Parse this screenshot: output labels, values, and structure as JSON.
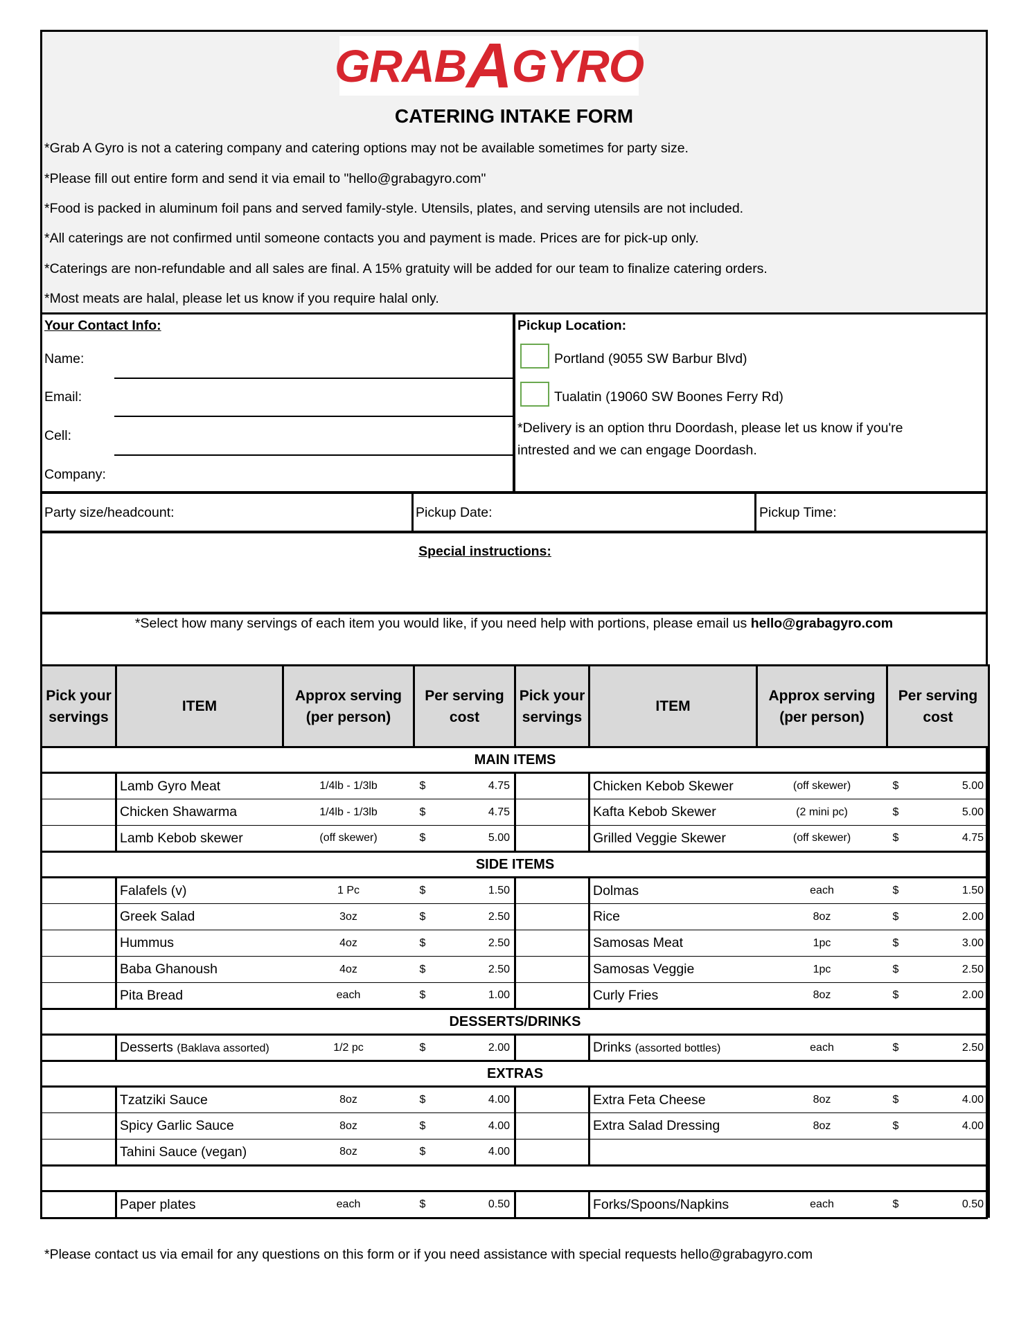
{
  "brand": {
    "logo_text_left": "GRAB",
    "logo_text_mid": "A",
    "logo_text_right": "GYRO",
    "color": "#d7262e"
  },
  "title": "CATERING INTAKE FORM",
  "notes": [
    "*Grab A Gyro is not a catering company and catering options may not be available sometimes for party size.",
    "*Please fill out entire form and send it via email to \"hello@grabagyro.com\"",
    "*Food is packed in aluminum foil pans and served family-style. Utensils, plates, and serving utensils are not included.",
    "*All caterings are not confirmed until someone contacts you and payment is made. Prices are for pick-up only.",
    "*Caterings are non-refundable and all sales are final. A 15% gratuity will be added for our team to finalize catering orders.",
    "*Most meats are halal, please let us know if you require halal only."
  ],
  "contact": {
    "heading": "Your Contact Info:",
    "name": "Name:",
    "email": "Email:",
    "cell": "Cell:",
    "company": "Company:"
  },
  "pickup": {
    "heading": "Pickup Location:",
    "options": [
      "Portland (9055 SW Barbur Blvd)",
      "Tualatin (19060 SW Boones Ferry Rd)"
    ],
    "delivery_note_1": "*Delivery is an option thru Doordash, please let us know if you're",
    "delivery_note_2": "intrested and we can engage Doordash."
  },
  "party": {
    "headcount": "Party size/headcount:",
    "date": "Pickup Date:",
    "time": "Pickup Time:"
  },
  "special": "Special instructions:",
  "select_note": "*Select how many servings of each item you would like, if you need help with portions, please email us ",
  "select_email": "hello@grabagyro.com",
  "headers": {
    "pick": [
      "Pick your",
      "servings"
    ],
    "item": "ITEM",
    "approx": [
      "Approx serving",
      "(per person)"
    ],
    "cost": [
      "Per serving",
      "cost"
    ]
  },
  "sections": [
    {
      "title": "MAIN ITEMS",
      "rows": [
        [
          {
            "item": "Lamb Gyro Meat",
            "approx": "1/4lb - 1/3lb",
            "cost": "4.75"
          },
          {
            "item": "Chicken Kebob Skewer",
            "approx": "(off skewer)",
            "cost": "5.00"
          }
        ],
        [
          {
            "item": "Chicken Shawarma",
            "approx": "1/4lb - 1/3lb",
            "cost": "4.75"
          },
          {
            "item": "Kafta Kebob Skewer",
            "approx": "(2 mini pc)",
            "cost": "5.00"
          }
        ],
        [
          {
            "item": "Lamb Kebob skewer",
            "approx": "(off skewer)",
            "cost": "5.00"
          },
          {
            "item": "Grilled Veggie Skewer",
            "approx": "(off skewer)",
            "cost": "4.75"
          }
        ]
      ]
    },
    {
      "title": "SIDE ITEMS",
      "rows": [
        [
          {
            "item": "Falafels (v)",
            "approx": "1 Pc",
            "cost": "1.50"
          },
          {
            "item": "Dolmas",
            "approx": "each",
            "cost": "1.50"
          }
        ],
        [
          {
            "item": "Greek Salad",
            "approx": "3oz",
            "cost": "2.50"
          },
          {
            "item": "Rice",
            "approx": "8oz",
            "cost": "2.00"
          }
        ],
        [
          {
            "item": "Hummus",
            "approx": "4oz",
            "cost": "2.50"
          },
          {
            "item": "Samosas Meat",
            "approx": "1pc",
            "cost": "3.00"
          }
        ],
        [
          {
            "item": "Baba Ghanoush",
            "approx": "4oz",
            "cost": "2.50"
          },
          {
            "item": "Samosas Veggie",
            "approx": "1pc",
            "cost": "2.50"
          }
        ],
        [
          {
            "item": "Pita Bread",
            "approx": "each",
            "cost": "1.00"
          },
          {
            "item": "Curly Fries",
            "approx": "8oz",
            "cost": "2.00"
          }
        ]
      ]
    },
    {
      "title": "DESSERTS/DRINKS",
      "rows": [
        [
          {
            "item": "Desserts",
            "note": "(Baklava assorted)",
            "approx": "1/2 pc",
            "cost": "2.00"
          },
          {
            "item": "Drinks",
            "note": "(assorted bottles)",
            "approx": "each",
            "cost": "2.50"
          }
        ]
      ]
    },
    {
      "title": "EXTRAS",
      "rows": [
        [
          {
            "item": "Tzatziki Sauce",
            "approx": "8oz",
            "cost": "4.00"
          },
          {
            "item": "Extra Feta Cheese",
            "approx": "8oz",
            "cost": "4.00"
          }
        ],
        [
          {
            "item": "Spicy Garlic Sauce",
            "approx": "8oz",
            "cost": "4.00"
          },
          {
            "item": "Extra Salad Dressing",
            "approx": "8oz",
            "cost": "4.00"
          }
        ],
        [
          {
            "item": "Tahini Sauce (vegan)",
            "approx": "8oz",
            "cost": "4.00"
          },
          null
        ]
      ]
    },
    {
      "title": "",
      "rows": [
        [
          {
            "item": "Paper plates",
            "approx": "each",
            "cost": "0.50"
          },
          {
            "item": "Forks/Spoons/Napkins",
            "approx": "each",
            "cost": "0.50"
          }
        ]
      ]
    }
  ],
  "currency": "$",
  "footer": "*Please contact us via email for any questions on this form or if you need assistance with special requests hello@grabagyro.com"
}
